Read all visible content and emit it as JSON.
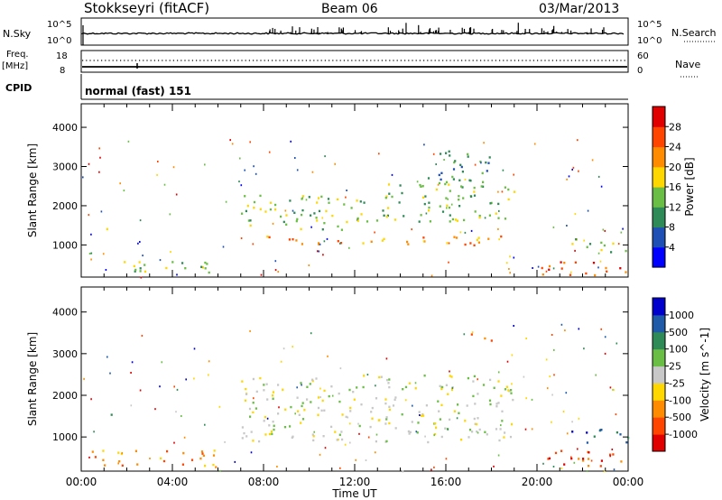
{
  "header": {
    "station": "Stokkseyri (fitACF)",
    "beam": "Beam 06",
    "date": "03/Mar/2013"
  },
  "noise_panel": {
    "left_label": "N.Sky",
    "right_label": "N.Search",
    "top_tick": "10^5",
    "bottom_tick": "10^0"
  },
  "freq_panel": {
    "left_label_1": "Freq.",
    "left_label_2": "[MHz]",
    "left_top_tick": "18",
    "left_bottom_tick": "8",
    "right_top_tick": "60",
    "right_bottom_tick": "0",
    "right_label": "Nave"
  },
  "cpid": {
    "label": "CPID",
    "value": "normal (fast) 151"
  },
  "chart_data": [
    {
      "type": "heatmap",
      "name": "power",
      "ylabel": "Slant Range [km]",
      "ylim": [
        180,
        4600
      ],
      "yticks": [
        "1000",
        "2000",
        "3000",
        "4000"
      ],
      "colorbar_label": "Power [dB]",
      "colorbar_ticks": [
        "4",
        "8",
        "12",
        "16",
        "20",
        "24",
        "28"
      ],
      "colorbar_colors": [
        "#0000ff",
        "#1e4fb4",
        "#2e8b57",
        "#6abe45",
        "#ffd700",
        "#ff8c00",
        "#ff4500",
        "#e00000"
      ],
      "blobs": [
        {
          "t": [
            8.0,
            18.5
          ],
          "r": [
            1000,
            1250
          ],
          "level": 5
        },
        {
          "t": [
            7.0,
            12.0
          ],
          "r": [
            1400,
            2300
          ],
          "level": 3
        },
        {
          "t": [
            12.0,
            19.0
          ],
          "r": [
            1600,
            2600
          ],
          "level": 3
        },
        {
          "t": [
            15.0,
            18.0
          ],
          "r": [
            2600,
            3500
          ],
          "level": 2
        },
        {
          "t": [
            0.2,
            6.0
          ],
          "r": [
            300,
            600
          ],
          "level": 3
        },
        {
          "t": [
            1.0,
            1.3
          ],
          "r": [
            1400,
            1700
          ],
          "level": 4
        },
        {
          "t": [
            20.0,
            24.0
          ],
          "r": [
            250,
            600
          ],
          "level": 6
        },
        {
          "t": [
            21.5,
            24.0
          ],
          "r": [
            800,
            1200
          ],
          "level": 3
        }
      ]
    },
    {
      "type": "heatmap",
      "name": "velocity",
      "ylabel": "Slant Range [km]",
      "ylim": [
        180,
        4600
      ],
      "yticks": [
        "1000",
        "2000",
        "3000",
        "4000"
      ],
      "xticks": [
        "00:00",
        "04:00",
        "08:00",
        "12:00",
        "16:00",
        "20:00",
        "00:00"
      ],
      "xlabel": "Time UT",
      "colorbar_label": "Velocity [m s^-1]",
      "colorbar_ticks": [
        "1000",
        "500",
        "100",
        "25",
        "-25",
        "-100",
        "-500",
        "-1000"
      ],
      "colorbar_colors": [
        "#0000cd",
        "#1e5aa8",
        "#2e8b57",
        "#6abe45",
        "#c8c8c8",
        "#ffd700",
        "#ff8c00",
        "#ff4500",
        "#e00000"
      ],
      "blobs": [
        {
          "t": [
            7.0,
            19.0
          ],
          "r": [
            900,
            2500
          ],
          "level": 4
        },
        {
          "t": [
            17.0,
            18.0
          ],
          "r": [
            3200,
            3500
          ],
          "level": 6
        },
        {
          "t": [
            0.2,
            6.0
          ],
          "r": [
            300,
            700
          ],
          "level": 6
        },
        {
          "t": [
            1.0,
            1.3
          ],
          "r": [
            1400,
            1700
          ],
          "level": 1
        },
        {
          "t": [
            20.0,
            24.0
          ],
          "r": [
            300,
            700
          ],
          "level": 7
        },
        {
          "t": [
            21.5,
            24.0
          ],
          "r": [
            800,
            1200
          ],
          "level": 1
        }
      ]
    }
  ]
}
